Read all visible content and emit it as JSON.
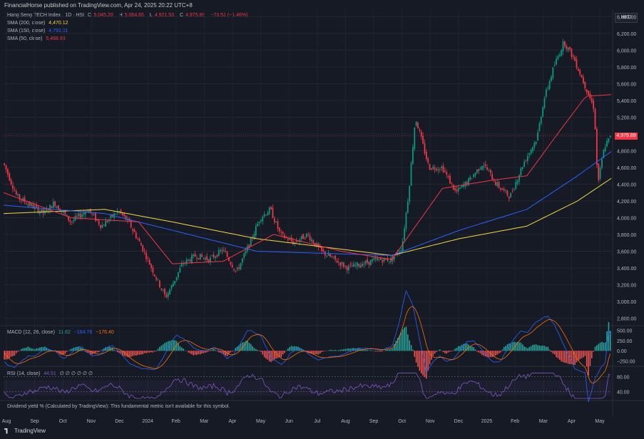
{
  "header": {
    "publisher": "FinancialHorse published on TradingView.com, Apr 24, 2025 20:22 UTC+8"
  },
  "legend": {
    "title": "Hang Seng TECH Index · 1D · HSI",
    "ohlc": {
      "o_label": "O",
      "o": "5,045.20",
      "h_label": "H",
      "h": "5,064.65",
      "l_label": "L",
      "l": "4,921.53",
      "c_label": "C",
      "c": "4,975.89",
      "chg": "−73.51 (−1.46%)"
    },
    "sma200": {
      "label": "SMA (200, close)",
      "value": "4,470.12",
      "color": "#f5d83a"
    },
    "sma150": {
      "label": "SMA (150, close)",
      "value": "4,792.01",
      "color": "#2962ff"
    },
    "sma50": {
      "label": "SMA (50, close)",
      "value": "5,468.93",
      "color": "#f23645"
    }
  },
  "currency_button": "HKD",
  "last_price_tag": "4,975.89",
  "macd_legend": {
    "label": "MACD (12, 26, close)",
    "v1": "11.62",
    "v2": "−164.78",
    "v3": "−176.40"
  },
  "rsi_legend": {
    "label": "RSI (14, close)",
    "v1": "44.51",
    "extra": "∅ ∅ ∅ ∅ ∅ ∅"
  },
  "dividend_label": "Dividend yield % (Calculated by TradingView): This fundamental metric isn't available for this symbol.",
  "footer_brand": "TradingView",
  "colors": {
    "up": "#089981",
    "down": "#f23645",
    "macd": "#2962ff",
    "signal": "#ff6d00",
    "rsi": "#7e57c2"
  },
  "chart_data": [
    {
      "type": "candlestick",
      "y_ticks": [
        2800,
        3000,
        3200,
        3400,
        3600,
        3800,
        4000,
        4200,
        4400,
        4600,
        4800,
        5000,
        5200,
        5400,
        5600,
        5800,
        6000,
        6200,
        6400
      ],
      "y_tick_labels": [
        "2,800.00",
        "3,000.00",
        "3,200.00",
        "3,400.00",
        "3,600.00",
        "3,800.00",
        "4,000.00",
        "4,200.00",
        "4,400.00",
        "4,600.00",
        "4,800.00",
        "5,000.00",
        "5,200.00",
        "5,400.00",
        "5,600.00",
        "5,800.00",
        "6,000.00",
        "6,200.00",
        "6,400.00"
      ],
      "x_labels": [
        "Aug",
        "Sep",
        "Oct",
        "Nov",
        "Dec",
        "2024",
        "Feb",
        "Mar",
        "Apr",
        "May",
        "Jun",
        "Jul",
        "Aug",
        "Sep",
        "Oct",
        "Nov",
        "Dec",
        "2025",
        "Feb",
        "Mar",
        "Apr",
        "May"
      ],
      "ylim": [
        2720,
        6480
      ],
      "key_points": [
        {
          "t": 0,
          "v": 4650
        },
        {
          "t": 8,
          "v": 4250
        },
        {
          "t": 16,
          "v": 4150
        },
        {
          "t": 24,
          "v": 4050
        },
        {
          "t": 30,
          "v": 4180
        },
        {
          "t": 40,
          "v": 3950
        },
        {
          "t": 50,
          "v": 4100
        },
        {
          "t": 58,
          "v": 3900
        },
        {
          "t": 68,
          "v": 4080
        },
        {
          "t": 74,
          "v": 3950
        },
        {
          "t": 82,
          "v": 3650
        },
        {
          "t": 90,
          "v": 3300
        },
        {
          "t": 96,
          "v": 3050
        },
        {
          "t": 100,
          "v": 3200
        },
        {
          "t": 106,
          "v": 3450
        },
        {
          "t": 114,
          "v": 3550
        },
        {
          "t": 122,
          "v": 3500
        },
        {
          "t": 130,
          "v": 3620
        },
        {
          "t": 138,
          "v": 3350
        },
        {
          "t": 146,
          "v": 3700
        },
        {
          "t": 152,
          "v": 4000
        },
        {
          "t": 158,
          "v": 4100
        },
        {
          "t": 164,
          "v": 3800
        },
        {
          "t": 172,
          "v": 3700
        },
        {
          "t": 180,
          "v": 3800
        },
        {
          "t": 188,
          "v": 3600
        },
        {
          "t": 196,
          "v": 3500
        },
        {
          "t": 204,
          "v": 3400
        },
        {
          "t": 212,
          "v": 3450
        },
        {
          "t": 222,
          "v": 3500
        },
        {
          "t": 230,
          "v": 3500
        },
        {
          "t": 236,
          "v": 3650
        },
        {
          "t": 240,
          "v": 4300
        },
        {
          "t": 244,
          "v": 5200
        },
        {
          "t": 248,
          "v": 4900
        },
        {
          "t": 252,
          "v": 4600
        },
        {
          "t": 260,
          "v": 4600
        },
        {
          "t": 268,
          "v": 4300
        },
        {
          "t": 276,
          "v": 4450
        },
        {
          "t": 284,
          "v": 4650
        },
        {
          "t": 292,
          "v": 4400
        },
        {
          "t": 300,
          "v": 4250
        },
        {
          "t": 308,
          "v": 4650
        },
        {
          "t": 316,
          "v": 4950
        },
        {
          "t": 320,
          "v": 5400
        },
        {
          "t": 326,
          "v": 5800
        },
        {
          "t": 332,
          "v": 6100
        },
        {
          "t": 338,
          "v": 5900
        },
        {
          "t": 344,
          "v": 5600
        },
        {
          "t": 350,
          "v": 5300
        },
        {
          "t": 352,
          "v": 4400
        },
        {
          "t": 356,
          "v": 4850
        },
        {
          "t": 360,
          "v": 4976
        }
      ],
      "sma200": [
        {
          "t": 0,
          "v": 4050
        },
        {
          "t": 60,
          "v": 4100
        },
        {
          "t": 100,
          "v": 3950
        },
        {
          "t": 150,
          "v": 3750
        },
        {
          "t": 230,
          "v": 3550
        },
        {
          "t": 270,
          "v": 3750
        },
        {
          "t": 310,
          "v": 3900
        },
        {
          "t": 340,
          "v": 4200
        },
        {
          "t": 360,
          "v": 4470
        }
      ],
      "sma150": [
        {
          "t": 0,
          "v": 4150
        },
        {
          "t": 60,
          "v": 4050
        },
        {
          "t": 100,
          "v": 3850
        },
        {
          "t": 150,
          "v": 3600
        },
        {
          "t": 230,
          "v": 3550
        },
        {
          "t": 270,
          "v": 3850
        },
        {
          "t": 310,
          "v": 4100
        },
        {
          "t": 340,
          "v": 4500
        },
        {
          "t": 360,
          "v": 4790
        }
      ],
      "sma50": [
        {
          "t": 0,
          "v": 4300
        },
        {
          "t": 40,
          "v": 4000
        },
        {
          "t": 80,
          "v": 3950
        },
        {
          "t": 100,
          "v": 3450
        },
        {
          "t": 130,
          "v": 3480
        },
        {
          "t": 160,
          "v": 3800
        },
        {
          "t": 200,
          "v": 3600
        },
        {
          "t": 230,
          "v": 3500
        },
        {
          "t": 260,
          "v": 4350
        },
        {
          "t": 290,
          "v": 4450
        },
        {
          "t": 310,
          "v": 4500
        },
        {
          "t": 330,
          "v": 5050
        },
        {
          "t": 345,
          "v": 5450
        },
        {
          "t": 360,
          "v": 5469
        }
      ]
    },
    {
      "type": "line",
      "name": "MACD",
      "y_ticks": [
        500,
        250,
        0,
        -250
      ],
      "y_tick_labels": [
        "500.00",
        "250.00",
        "0.00",
        "−250.00"
      ],
      "ylim": [
        -350,
        600
      ]
    },
    {
      "type": "line",
      "name": "RSI",
      "y_ticks": [
        80,
        40
      ],
      "y_tick_labels": [
        "80.00",
        "40.00"
      ],
      "ylim": [
        20,
        100
      ]
    }
  ]
}
